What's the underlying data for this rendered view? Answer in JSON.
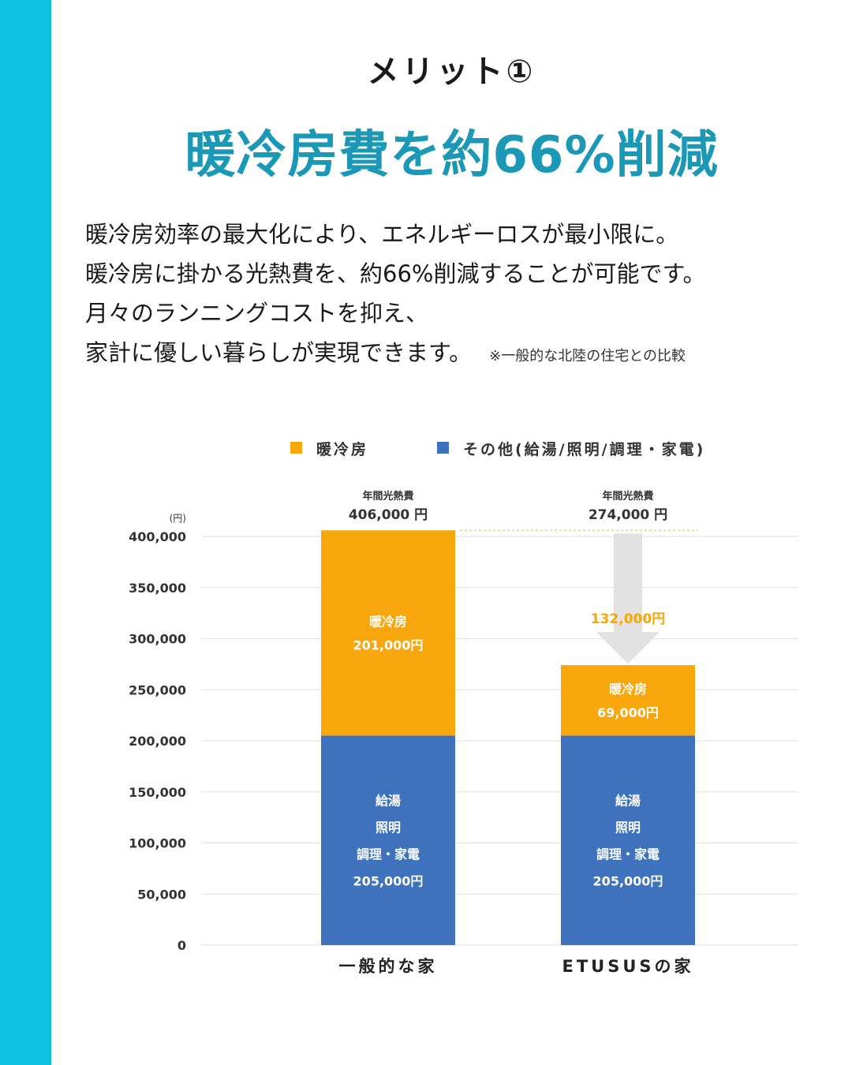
{
  "header": {
    "eyebrow": "メリット①",
    "headline": "暖冷房費を約66%削減"
  },
  "body": {
    "lines": [
      "暖冷房効率の最大化により、エネルギーロスが最小限に。",
      "暖冷房に掛かる光熱費を、約66%削減することが可能です。",
      "月々のランニングコストを抑え、",
      "家計に優しい暮らしが実現できます。"
    ],
    "note": "※一般的な北陸の住宅との比較"
  },
  "colors": {
    "accent_bar": "#0fbfe0",
    "headline": "#1a98b6",
    "heating": "#f7a70c",
    "other": "#3e72bd",
    "arrow": "#e2e2e2"
  },
  "chart_data": {
    "type": "bar",
    "stacked": true,
    "unit_label": "(円)",
    "categories": [
      "一般的な家",
      "ETUSUSの家"
    ],
    "series": [
      {
        "name": "その他(給湯/照明/調理・家電)",
        "values": [
          205000,
          205000
        ],
        "color": "#3e72bd",
        "labels": [
          [
            "給湯",
            "照明",
            "調理・家電",
            "205,000円"
          ],
          [
            "給湯",
            "照明",
            "調理・家電",
            "205,000円"
          ]
        ]
      },
      {
        "name": "暖冷房",
        "values": [
          201000,
          69000
        ],
        "color": "#f7a70c",
        "labels": [
          [
            "暖冷房",
            "201,000円"
          ],
          [
            "暖冷房",
            "69,000円"
          ]
        ]
      }
    ],
    "totals": [
      {
        "label": "年間光熱費",
        "value": "406,000 円"
      },
      {
        "label": "年間光熱費",
        "value": "274,000 円"
      }
    ],
    "reduction_label": "132,000円",
    "ylim": [
      0,
      400000
    ],
    "yticks": [
      0,
      50000,
      100000,
      150000,
      200000,
      250000,
      300000,
      350000,
      400000
    ],
    "ytick_labels": [
      "0",
      "50,000",
      "100,000",
      "150,000",
      "200,000",
      "250,000",
      "300,000",
      "350,000",
      "400,000"
    ],
    "grid": true,
    "legend_position": "top"
  }
}
